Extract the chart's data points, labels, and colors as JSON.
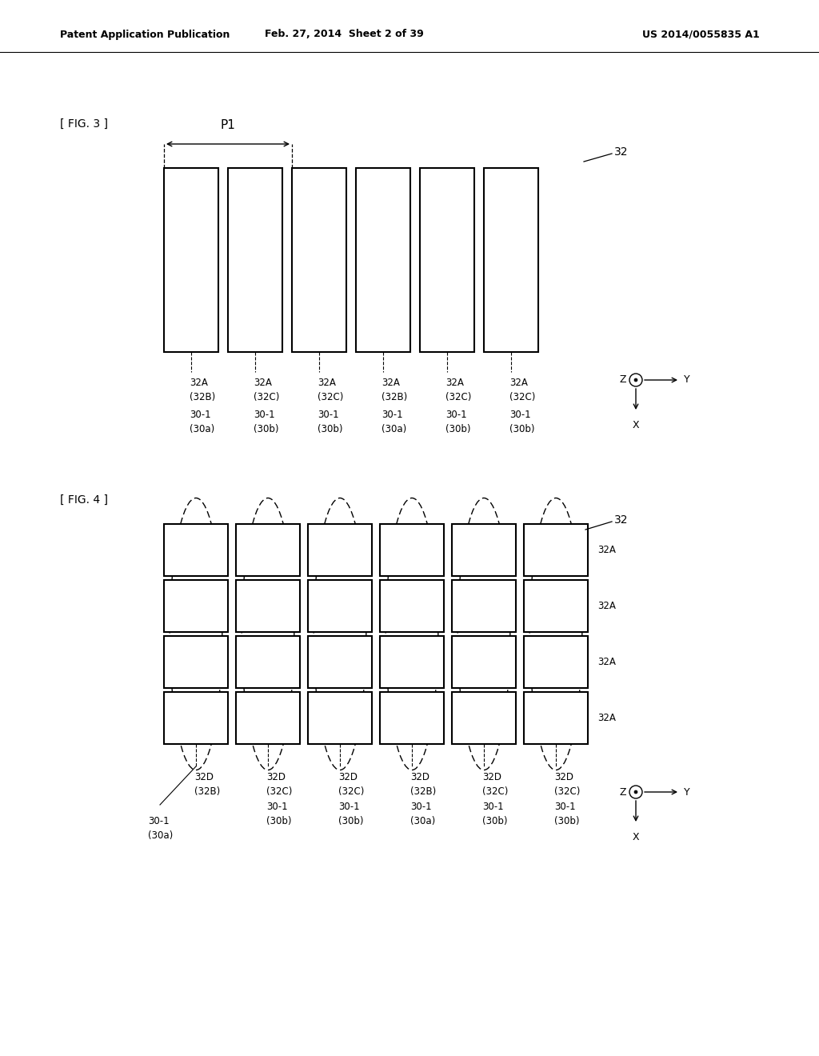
{
  "header_left": "Patent Application Publication",
  "header_mid": "Feb. 27, 2014  Sheet 2 of 39",
  "header_right": "US 2014/0055835 A1",
  "fig3_label": "[ FIG. 3 ]",
  "fig4_label": "[ FIG. 4 ]",
  "fig3_ref_label": "32",
  "fig4_ref_label": "32",
  "p1_label": "P1",
  "fig3_col_labels_top": [
    "32A",
    "32A",
    "32A",
    "32A",
    "32A",
    "32A"
  ],
  "fig3_col_labels_bot": [
    "(32B)",
    "(32C)",
    "(32C)",
    "(32B)",
    "(32C)",
    "(32C)"
  ],
  "fig3_row_labels_top": [
    "30-1",
    "30-1",
    "30-1",
    "30-1",
    "30-1",
    "30-1"
  ],
  "fig3_row_labels_bot": [
    "(30a)",
    "(30b)",
    "(30b)",
    "(30a)",
    "(30b)",
    "(30b)"
  ],
  "fig4_col_labels_top": [
    "32D",
    "32D",
    "32D",
    "32D",
    "32D",
    "32D"
  ],
  "fig4_col_labels_bot": [
    "(32B)",
    "(32C)",
    "(32C)",
    "(32B)",
    "(32C)",
    "(32C)"
  ],
  "fig4_row_labels_top": [
    "30-1",
    "30-1",
    "30-1",
    "30-1",
    "30-1"
  ],
  "fig4_row_labels_bot": [
    "(30b)",
    "(30b)",
    "(30a)",
    "(30b)",
    "(30b)"
  ],
  "fig4_first_label_top": "30-1",
  "fig4_first_label_bot": "(30a)",
  "fig4_side_labels": [
    "32A",
    "32A",
    "32A",
    "32A"
  ],
  "bg_color": "#ffffff",
  "line_color": "#000000",
  "text_color": "#000000"
}
